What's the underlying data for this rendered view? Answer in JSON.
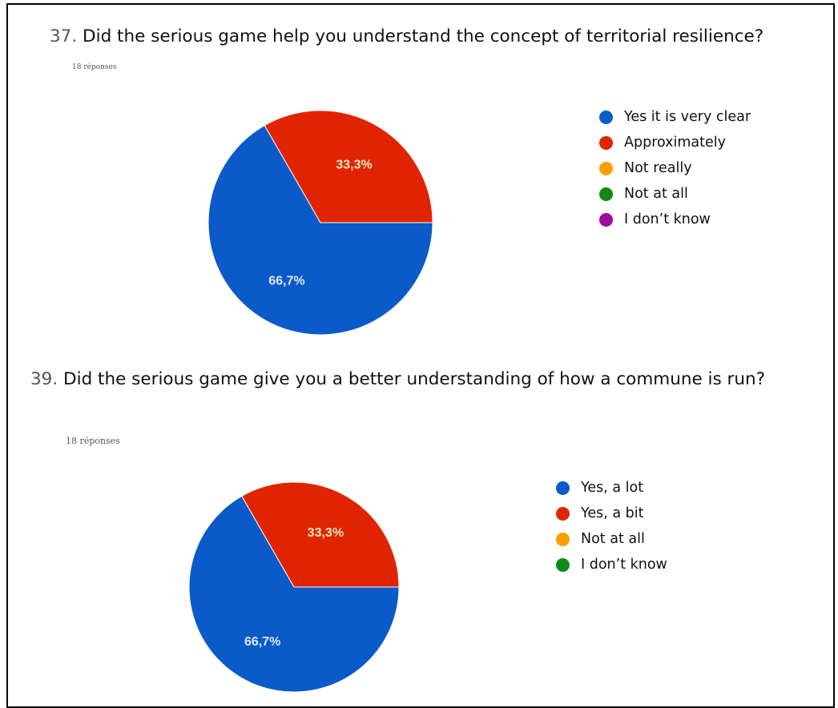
{
  "chart_data": [
    {
      "type": "pie",
      "number": "37.",
      "title": "Did the serious game help you understand the concept of territorial resilience?",
      "responses": "18 réponses",
      "categories": [
        "Yes it is very clear",
        "Approximately",
        "Not really",
        "Not at all",
        "I don’t know"
      ],
      "values": [
        66.7,
        33.3,
        0,
        0,
        0
      ],
      "value_labels": [
        "66,7%",
        "33,3%",
        "",
        "",
        ""
      ],
      "colors": [
        "#0b5ac9",
        "#e12400",
        "#ffa000",
        "#0e8a16",
        "#9c0b9c"
      ],
      "legend_position": "right"
    },
    {
      "type": "pie",
      "number": "39.",
      "title": "Did the serious game give you a better understanding of how a commune is run?",
      "responses": "18 réponses",
      "categories": [
        "Yes, a lot",
        "Yes, a bit",
        "Not at all",
        "I don’t know"
      ],
      "values": [
        66.7,
        33.3,
        0,
        0
      ],
      "value_labels": [
        "66,7%",
        "33,3%",
        "",
        ""
      ],
      "colors": [
        "#0b5ac9",
        "#e12400",
        "#ffa000",
        "#0e8a16"
      ],
      "legend_position": "right"
    }
  ]
}
